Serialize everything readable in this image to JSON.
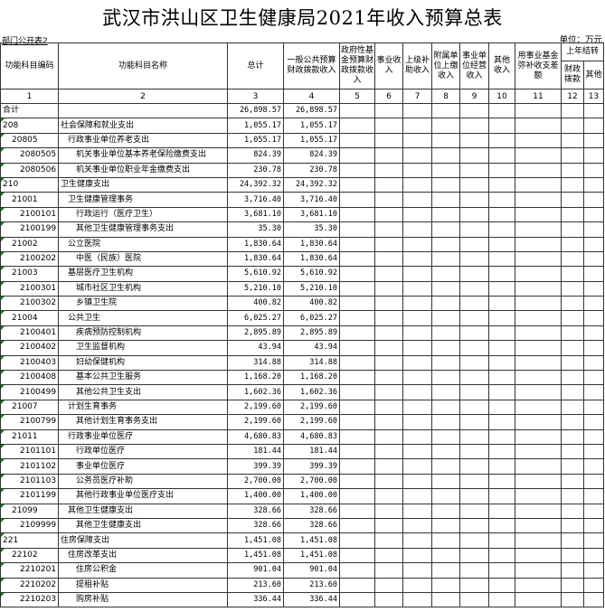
{
  "title": "武汉市洪山区卫生健康局2021年收入预算总表",
  "left_note": "部门公开表2",
  "unit": "单位：万元",
  "headers": {
    "code": "功能科目编码",
    "name": "功能科目名称",
    "total": "总计",
    "general": "一般公共预算财政拨款收入",
    "gov_fund": "政府性基金预算财政拨款收入",
    "business": "事业收入",
    "superior": "上级补助收入",
    "affiliated": "附属单位上缴收入",
    "operation": "事业单位经营收入",
    "other": "其他收入",
    "fund_cover": "用事业基金弥补收支差额",
    "carryover": "上年结转",
    "carry_fiscal": "财政拨款",
    "carry_other": "其他"
  },
  "col_numbers": [
    "1",
    "2",
    "3",
    "4",
    "5",
    "6",
    "7",
    "8",
    "9",
    "10",
    "11",
    "12",
    "13"
  ],
  "rows": [
    {
      "code": "合计",
      "name": "",
      "total": "26,898.57",
      "general": "26,898.57",
      "level": -1
    },
    {
      "code": "208",
      "name": "社会保障和就业支出",
      "total": "1,055.17",
      "general": "1,055.17",
      "level": 0
    },
    {
      "code": "20805",
      "name": "行政事业单位养老支出",
      "total": "1,055.17",
      "general": "1,055.17",
      "level": 1
    },
    {
      "code": "2080505",
      "name": "机关事业单位基本养老保险缴费支出",
      "total": "824.39",
      "general": "824.39",
      "level": 2
    },
    {
      "code": "2080506",
      "name": "机关事业单位职业年金缴费支出",
      "total": "230.78",
      "general": "230.78",
      "level": 2
    },
    {
      "code": "210",
      "name": "卫生健康支出",
      "total": "24,392.32",
      "general": "24,392.32",
      "level": 0
    },
    {
      "code": "21001",
      "name": "卫生健康管理事务",
      "total": "3,716.40",
      "general": "3,716.40",
      "level": 1
    },
    {
      "code": "2100101",
      "name": "行政运行（医疗卫生）",
      "total": "3,681.10",
      "general": "3,681.10",
      "level": 2
    },
    {
      "code": "2100199",
      "name": "其他卫生健康管理事务支出",
      "total": "35.30",
      "general": "35.30",
      "level": 2
    },
    {
      "code": "21002",
      "name": "公立医院",
      "total": "1,830.64",
      "general": "1,830.64",
      "level": 1
    },
    {
      "code": "2100202",
      "name": "中医（民族）医院",
      "total": "1,830.64",
      "general": "1,830.64",
      "level": 2
    },
    {
      "code": "21003",
      "name": "基层医疗卫生机构",
      "total": "5,610.92",
      "general": "5,610.92",
      "level": 1
    },
    {
      "code": "2100301",
      "name": "城市社区卫生机构",
      "total": "5,210.10",
      "general": "5,210.10",
      "level": 2
    },
    {
      "code": "2100302",
      "name": "乡镇卫生院",
      "total": "400.82",
      "general": "400.82",
      "level": 2
    },
    {
      "code": "21004",
      "name": "公共卫生",
      "total": "6,025.27",
      "general": "6,025.27",
      "level": 1
    },
    {
      "code": "2100401",
      "name": "疾病预防控制机构",
      "total": "2,895.89",
      "general": "2,895.89",
      "level": 2
    },
    {
      "code": "2100402",
      "name": "卫生监督机构",
      "total": "43.94",
      "general": "43.94",
      "level": 2
    },
    {
      "code": "2100403",
      "name": "妇幼保健机构",
      "total": "314.88",
      "general": "314.88",
      "level": 2
    },
    {
      "code": "2100408",
      "name": "基本公共卫生服务",
      "total": "1,168.20",
      "general": "1,168.20",
      "level": 2
    },
    {
      "code": "2100499",
      "name": "其他公共卫生支出",
      "total": "1,602.36",
      "general": "1,602.36",
      "level": 2
    },
    {
      "code": "21007",
      "name": "计划生育事务",
      "total": "2,199.60",
      "general": "2,199.60",
      "level": 1
    },
    {
      "code": "2100799",
      "name": "其他计划生育事务支出",
      "total": "2,199.60",
      "general": "2,199.60",
      "level": 2
    },
    {
      "code": "21011",
      "name": "行政事业单位医疗",
      "total": "4,680.83",
      "general": "4,680.83",
      "level": 1
    },
    {
      "code": "2101101",
      "name": "行政单位医疗",
      "total": "181.44",
      "general": "181.44",
      "level": 2
    },
    {
      "code": "2101102",
      "name": "事业单位医疗",
      "total": "399.39",
      "general": "399.39",
      "level": 2
    },
    {
      "code": "2101103",
      "name": "公务员医疗补助",
      "total": "2,700.00",
      "general": "2,700.00",
      "level": 2
    },
    {
      "code": "2101199",
      "name": "其他行政事业单位医疗支出",
      "total": "1,400.00",
      "general": "1,400.00",
      "level": 2
    },
    {
      "code": "21099",
      "name": "其他卫生健康支出",
      "total": "328.66",
      "general": "328.66",
      "level": 1
    },
    {
      "code": "2109999",
      "name": "其他卫生健康支出",
      "total": "328.66",
      "general": "328.66",
      "level": 2
    },
    {
      "code": "221",
      "name": "住房保障支出",
      "total": "1,451.08",
      "general": "1,451.08",
      "level": 0
    },
    {
      "code": "22102",
      "name": "住房改革支出",
      "total": "1,451.08",
      "general": "1,451.08",
      "level": 1
    },
    {
      "code": "2210201",
      "name": "住房公积金",
      "total": "901.04",
      "general": "901.04",
      "level": 2
    },
    {
      "code": "2210202",
      "name": "提租补贴",
      "total": "213.60",
      "general": "213.60",
      "level": 2
    },
    {
      "code": "2210203",
      "name": "购房补贴",
      "total": "336.44",
      "general": "336.44",
      "level": 2
    }
  ],
  "colors": {
    "grid": "#333333",
    "marker": "#1a7a1a"
  }
}
